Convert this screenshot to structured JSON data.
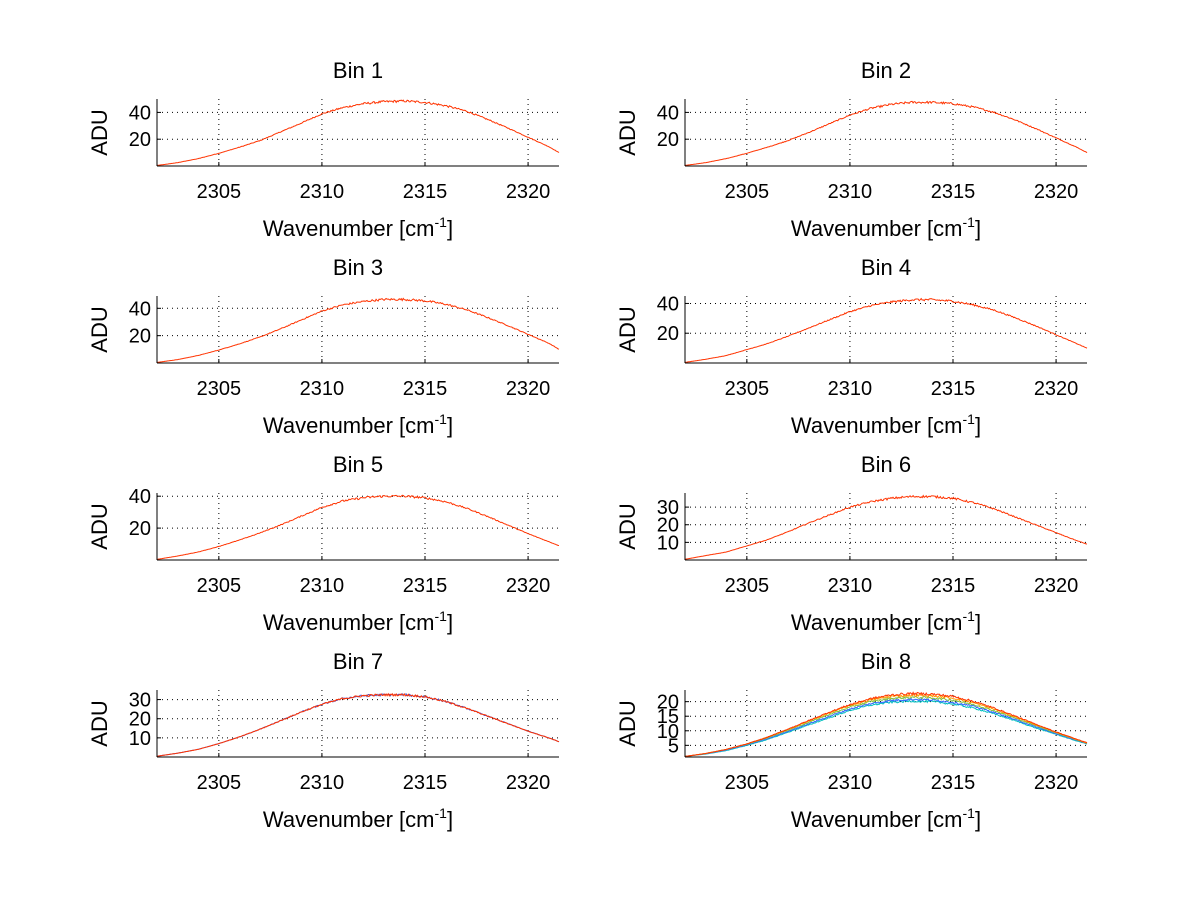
{
  "chart_data": [
    {
      "type": "line",
      "title": "Bin 1",
      "xlabel": "Wavenumber [cm",
      "xlabel_sup": "-1",
      "xlabel_close": "]",
      "ylabel": "ADU",
      "xlim": [
        2302,
        2321.5
      ],
      "ylim": [
        0,
        50
      ],
      "xticks": [
        2305,
        2310,
        2315,
        2320
      ],
      "yticks": [
        20,
        40
      ],
      "grid": true,
      "peak_x": 2313.8,
      "series": [
        {
          "color": "#ff3300",
          "x": [
            2302,
            2303,
            2304,
            2305,
            2306,
            2307,
            2308,
            2309,
            2310,
            2311,
            2312,
            2313,
            2314,
            2315,
            2316,
            2317,
            2318,
            2319,
            2320,
            2321,
            2321.5
          ],
          "y": [
            0.4,
            2.5,
            5.5,
            9.5,
            14,
            19,
            25.5,
            32,
            39,
            43.5,
            46.5,
            48,
            48.5,
            47.5,
            45,
            41,
            35,
            28.5,
            21.5,
            14.5,
            10
          ]
        }
      ]
    },
    {
      "type": "line",
      "title": "Bin 2",
      "xlabel": "Wavenumber [cm",
      "xlabel_sup": "-1",
      "xlabel_close": "]",
      "ylabel": "ADU",
      "xlim": [
        2302,
        2321.5
      ],
      "ylim": [
        0,
        50
      ],
      "xticks": [
        2305,
        2310,
        2315,
        2320
      ],
      "yticks": [
        20,
        40
      ],
      "grid": true,
      "peak_x": 2313.5,
      "series": [
        {
          "color": "#ff3300",
          "x": [
            2302,
            2303,
            2304,
            2305,
            2306,
            2307,
            2308,
            2309,
            2310,
            2311,
            2312,
            2313,
            2314,
            2315,
            2316,
            2317,
            2318,
            2319,
            2320,
            2321,
            2321.5
          ],
          "y": [
            0.4,
            2.5,
            5.5,
            9.5,
            14,
            19,
            25,
            31.5,
            38,
            43,
            46,
            47.5,
            47.5,
            46.5,
            44,
            40,
            34.5,
            28,
            21,
            14,
            10
          ]
        }
      ]
    },
    {
      "type": "line",
      "title": "Bin 3",
      "xlabel": "Wavenumber [cm",
      "xlabel_sup": "-1",
      "xlabel_close": "]",
      "ylabel": "ADU",
      "xlim": [
        2302,
        2321.5
      ],
      "ylim": [
        0,
        49
      ],
      "xticks": [
        2305,
        2310,
        2315,
        2320
      ],
      "yticks": [
        20,
        40
      ],
      "grid": true,
      "peak_x": 2313.8,
      "series": [
        {
          "color": "#ff3300",
          "x": [
            2302,
            2303,
            2304,
            2305,
            2306,
            2307,
            2308,
            2309,
            2310,
            2311,
            2312,
            2313,
            2314,
            2315,
            2316,
            2317,
            2318,
            2319,
            2320,
            2321,
            2321.5
          ],
          "y": [
            0.4,
            2.5,
            5.5,
            9.5,
            14,
            19,
            25,
            31.5,
            38,
            42.5,
            45,
            46.5,
            46.5,
            45.5,
            43,
            39,
            33.5,
            27.5,
            21,
            14.5,
            10
          ]
        }
      ]
    },
    {
      "type": "line",
      "title": "Bin 4",
      "xlabel": "Wavenumber [cm",
      "xlabel_sup": "-1",
      "xlabel_close": "]",
      "ylabel": "ADU",
      "xlim": [
        2302,
        2321.5
      ],
      "ylim": [
        0,
        45
      ],
      "xticks": [
        2305,
        2310,
        2315,
        2320
      ],
      "yticks": [
        20,
        40
      ],
      "grid": true,
      "peak_x": 2313.8,
      "series": [
        {
          "color": "#ff3300",
          "x": [
            2302,
            2303,
            2304,
            2305,
            2306,
            2307,
            2308,
            2309,
            2310,
            2311,
            2312,
            2313,
            2314,
            2315,
            2316,
            2317,
            2318,
            2319,
            2320,
            2321,
            2321.5
          ],
          "y": [
            0.4,
            2.5,
            5,
            9,
            13,
            18,
            23.5,
            29,
            34.5,
            38.5,
            41,
            42.5,
            42.5,
            41.5,
            39,
            35.5,
            30.5,
            25,
            19,
            13,
            10
          ]
        }
      ]
    },
    {
      "type": "line",
      "title": "Bin 5",
      "xlabel": "Wavenumber [cm",
      "xlabel_sup": "-1",
      "xlabel_close": "]",
      "ylabel": "ADU",
      "xlim": [
        2302,
        2321.5
      ],
      "ylim": [
        0,
        42
      ],
      "xticks": [
        2305,
        2310,
        2315,
        2320
      ],
      "yticks": [
        20,
        40
      ],
      "grid": true,
      "peak_x": 2313.2,
      "series": [
        {
          "color": "#ff3300",
          "x": [
            2302,
            2303,
            2304,
            2305,
            2306,
            2307,
            2308,
            2309,
            2310,
            2311,
            2312,
            2313,
            2314,
            2315,
            2316,
            2317,
            2318,
            2319,
            2320,
            2321,
            2321.5
          ],
          "y": [
            0.4,
            2.5,
            5,
            8.5,
            12.5,
            17,
            22,
            27.5,
            33,
            37,
            39,
            40,
            40,
            39,
            36.5,
            32.5,
            27.5,
            22,
            16.5,
            11.5,
            9
          ]
        }
      ]
    },
    {
      "type": "line",
      "title": "Bin 6",
      "xlabel": "Wavenumber [cm",
      "xlabel_sup": "-1",
      "xlabel_close": "]",
      "ylabel": "ADU",
      "xlim": [
        2302,
        2321.5
      ],
      "ylim": [
        0,
        38
      ],
      "xticks": [
        2305,
        2310,
        2315,
        2320
      ],
      "yticks": [
        10,
        20,
        30
      ],
      "grid": true,
      "peak_x": 2313.5,
      "series": [
        {
          "color": "#ff3300",
          "x": [
            2302,
            2303,
            2304,
            2305,
            2306,
            2307,
            2308,
            2309,
            2310,
            2311,
            2312,
            2313,
            2314,
            2315,
            2316,
            2317,
            2318,
            2319,
            2320,
            2321,
            2321.5
          ],
          "y": [
            0.4,
            2.5,
            4.5,
            8,
            11.5,
            16,
            21,
            25.5,
            30,
            33,
            35,
            36,
            36,
            35,
            32.5,
            29,
            24.5,
            20,
            15.5,
            11,
            9
          ]
        }
      ]
    },
    {
      "type": "line",
      "title": "Bin 7",
      "xlabel": "Wavenumber [cm",
      "xlabel_sup": "-1",
      "xlabel_close": "]",
      "ylabel": "ADU",
      "xlim": [
        2302,
        2321.5
      ],
      "ylim": [
        0,
        35
      ],
      "xticks": [
        2305,
        2310,
        2315,
        2320
      ],
      "yticks": [
        10,
        20,
        30
      ],
      "grid": true,
      "peak_x": 2313.2,
      "series": [
        {
          "color": "#4d4dcc",
          "x": [
            2302,
            2303,
            2304,
            2305,
            2306,
            2307,
            2308,
            2309,
            2310,
            2311,
            2312,
            2313,
            2314,
            2315,
            2316,
            2317,
            2318,
            2319,
            2320,
            2321,
            2321.5
          ],
          "y": [
            0.4,
            2,
            4,
            7,
            10.5,
            14.5,
            19,
            23.5,
            27.5,
            30.5,
            32,
            32.5,
            32.5,
            31.5,
            29,
            25.5,
            21.5,
            17.5,
            13.5,
            10,
            8
          ]
        },
        {
          "color": "#ff3300",
          "x": [
            2302,
            2303,
            2304,
            2305,
            2306,
            2307,
            2308,
            2309,
            2310,
            2311,
            2312,
            2313,
            2314,
            2315,
            2316,
            2317,
            2318,
            2319,
            2320,
            2321,
            2321.5
          ],
          "y": [
            0.4,
            2,
            4,
            7,
            10.5,
            14.5,
            19,
            23.5,
            27.5,
            30.5,
            32,
            32.5,
            32.5,
            31.5,
            29,
            25.5,
            21.5,
            17.5,
            13.5,
            10,
            8
          ]
        }
      ]
    },
    {
      "type": "line",
      "title": "Bin 8",
      "xlabel": "Wavenumber [cm",
      "xlabel_sup": "-1",
      "xlabel_close": "]",
      "ylabel": "ADU",
      "xlim": [
        2302,
        2321.5
      ],
      "ylim": [
        1,
        24
      ],
      "xticks": [
        2305,
        2310,
        2315,
        2320
      ],
      "yticks": [
        5,
        10,
        15,
        20
      ],
      "grid": true,
      "peak_x": 2313.2,
      "series": [
        {
          "color": "#00bfbf",
          "x": [
            2302,
            2303,
            2304,
            2305,
            2306,
            2307,
            2308,
            2309,
            2310,
            2311,
            2312,
            2313,
            2314,
            2315,
            2316,
            2317,
            2318,
            2319,
            2320,
            2321,
            2321.5
          ],
          "y": [
            1.2,
            2,
            3.2,
            5,
            7,
            9.5,
            12,
            14.5,
            17,
            18.8,
            19.8,
            20.2,
            20,
            19.2,
            17.8,
            15.8,
            13.5,
            11,
            8.8,
            6.5,
            5.5
          ]
        },
        {
          "color": "#3366ff",
          "x": [
            2302,
            2303,
            2304,
            2305,
            2306,
            2307,
            2308,
            2309,
            2310,
            2311,
            2312,
            2313,
            2314,
            2315,
            2316,
            2317,
            2318,
            2319,
            2320,
            2321,
            2321.5
          ],
          "y": [
            1.2,
            2.1,
            3.4,
            5.2,
            7.3,
            9.8,
            12.4,
            15,
            17.5,
            19.3,
            20.4,
            20.8,
            20.6,
            19.8,
            18.4,
            16.3,
            13.9,
            11.4,
            9,
            6.7,
            5.6
          ]
        },
        {
          "color": "#80c040",
          "x": [
            2302,
            2303,
            2304,
            2305,
            2306,
            2307,
            2308,
            2309,
            2310,
            2311,
            2312,
            2313,
            2314,
            2315,
            2316,
            2317,
            2318,
            2319,
            2320,
            2321,
            2321.5
          ],
          "y": [
            1.2,
            2.2,
            3.6,
            5.4,
            7.6,
            10.2,
            12.9,
            15.6,
            18.1,
            20,
            21.1,
            21.5,
            21.3,
            20.5,
            19,
            16.9,
            14.4,
            11.8,
            9.3,
            6.9,
            5.7
          ]
        },
        {
          "color": "#ff9900",
          "x": [
            2302,
            2303,
            2304,
            2305,
            2306,
            2307,
            2308,
            2309,
            2310,
            2311,
            2312,
            2313,
            2314,
            2315,
            2316,
            2317,
            2318,
            2319,
            2320,
            2321,
            2321.5
          ],
          "y": [
            1.2,
            2.2,
            3.6,
            5.5,
            7.8,
            10.5,
            13.3,
            16.1,
            18.7,
            20.6,
            21.8,
            22.2,
            22,
            21.2,
            19.6,
            17.4,
            14.8,
            12.1,
            9.5,
            7,
            5.8
          ]
        },
        {
          "color": "#ff3300",
          "x": [
            2302,
            2303,
            2304,
            2305,
            2306,
            2307,
            2308,
            2309,
            2310,
            2311,
            2312,
            2313,
            2314,
            2315,
            2316,
            2317,
            2318,
            2319,
            2320,
            2321,
            2321.5
          ],
          "y": [
            1.2,
            2.2,
            3.6,
            5.5,
            7.8,
            10.6,
            13.5,
            16.4,
            19,
            21,
            22.3,
            22.8,
            22.6,
            21.8,
            20.1,
            17.8,
            15.1,
            12.3,
            9.6,
            7.1,
            5.9
          ]
        }
      ]
    }
  ]
}
